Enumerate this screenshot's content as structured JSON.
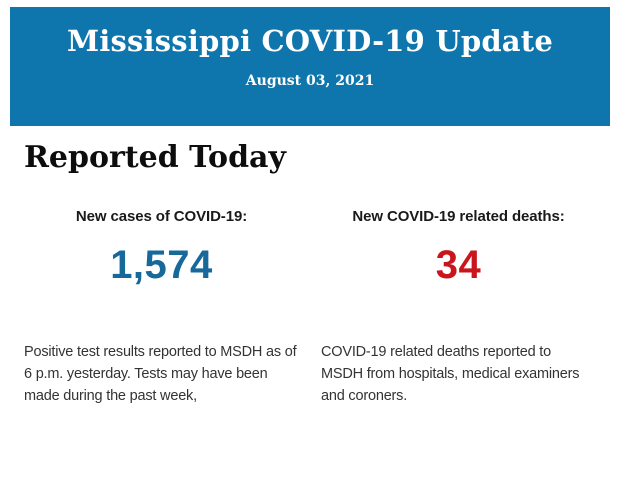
{
  "banner": {
    "title": "Mississippi COVID-19 Update",
    "date": "August 03, 2021",
    "background_color": "#0e76ad",
    "text_color": "#ffffff"
  },
  "section": {
    "heading": "Reported Today"
  },
  "stats": {
    "cases": {
      "label": "New cases of COVID-19:",
      "value": "1,574",
      "value_color": "#17689b",
      "description": "Positive test results reported to MSDH as of 6 p.m. yesterday. Tests may have been made during the past week,"
    },
    "deaths": {
      "label": "New COVID-19 related deaths:",
      "value": "34",
      "value_color": "#c9161c",
      "description": "COVID-19 related deaths reported to MSDH from hospitals, medical examiners and coroners."
    }
  }
}
